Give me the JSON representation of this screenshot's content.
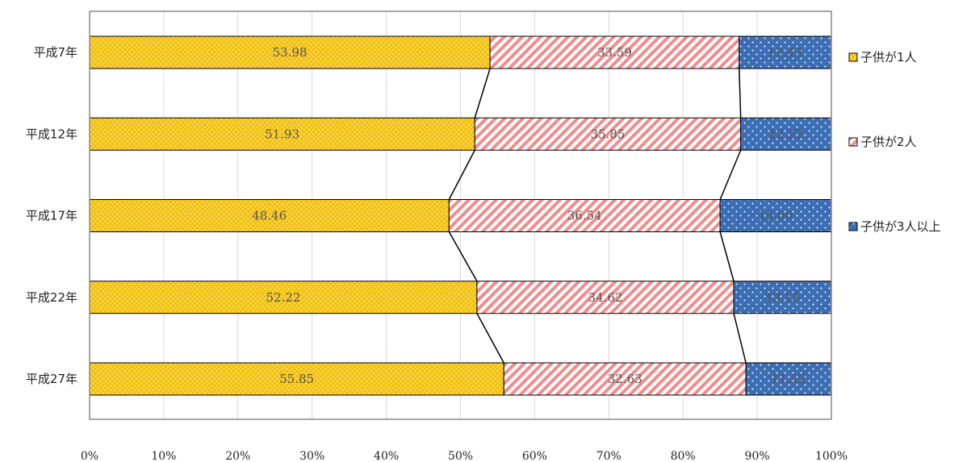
{
  "chart_data": {
    "type": "bar",
    "orientation": "horizontal",
    "stacked": "percent",
    "categories": [
      "平成7年",
      "平成12年",
      "平成17年",
      "平成22年",
      "平成27年"
    ],
    "series": [
      {
        "name": "子供が1人",
        "values": [
          53.98,
          51.93,
          48.46,
          52.22,
          55.85
        ],
        "labels": [
          "53.98",
          "51.93",
          "48.46",
          "52.22",
          "55.85"
        ],
        "color": "#F5C518",
        "pattern": "dotted-grid"
      },
      {
        "name": "子供が2人",
        "values": [
          33.59,
          35.85,
          36.54,
          34.62,
          32.63
        ],
        "labels": [
          "33.59",
          "35.85",
          "36.54",
          "34.62",
          "32.63"
        ],
        "color": "#F08C8C",
        "pattern": "diagonal-stripes"
      },
      {
        "name": "子供が3人以上",
        "values": [
          12.43,
          12.22,
          15.0,
          13.15,
          11.52
        ],
        "labels": [
          "12.43",
          "12.22",
          "15.00",
          "13.15",
          "11.52"
        ],
        "color": "#3B6EB5",
        "pattern": "white-dots"
      }
    ],
    "x_ticks": [
      "0%",
      "10%",
      "20%",
      "30%",
      "40%",
      "50%",
      "60%",
      "70%",
      "80%",
      "90%",
      "100%"
    ],
    "xlim": [
      0,
      100
    ],
    "grid": "vertical",
    "series_lines": true,
    "legend": "right",
    "title": "",
    "xlabel": "",
    "ylabel": ""
  }
}
